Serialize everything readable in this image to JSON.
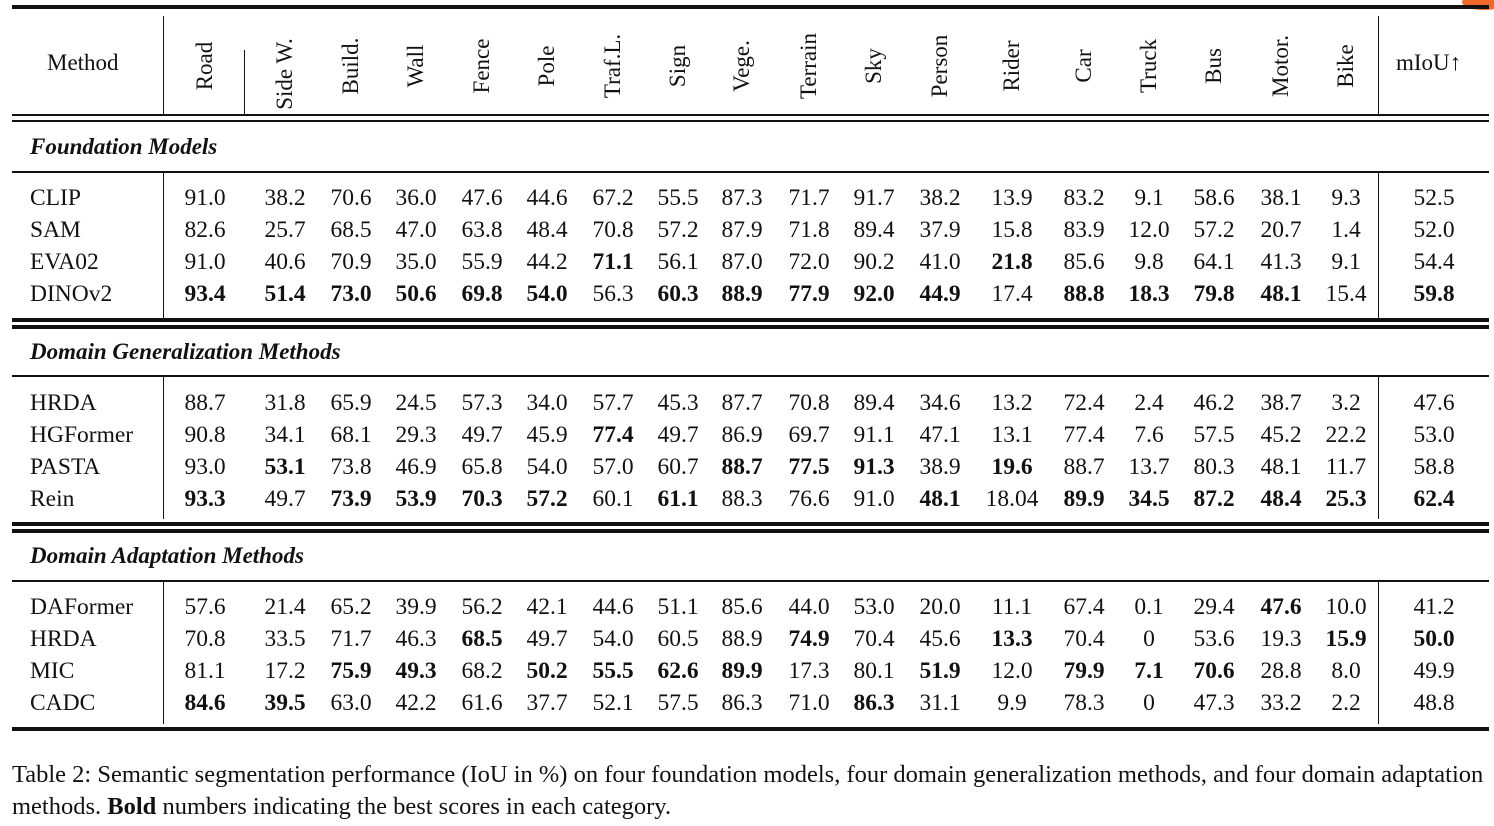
{
  "table": {
    "columns": [
      "Road",
      "Side W.",
      "Build.",
      "Wall",
      "Fence",
      "Pole",
      "Traf.L.",
      "Sign",
      "Vege.",
      "Terrain",
      "Sky",
      "Person",
      "Rider",
      "Car",
      "Truck",
      "Bus",
      "Motor.",
      "Bike"
    ],
    "method_header": "Method",
    "miou_header": "mIoU↑",
    "sections": [
      {
        "title": "Foundation Models",
        "rows": [
          {
            "method": "CLIP",
            "values": [
              "91.0",
              "38.2",
              "70.6",
              "36.0",
              "47.6",
              "44.6",
              "67.2",
              "55.5",
              "87.3",
              "71.7",
              "91.7",
              "38.2",
              "13.9",
              "83.2",
              "9.1",
              "58.6",
              "38.1",
              "9.3"
            ],
            "miou": "52.5",
            "bold": [],
            "miou_bold": false
          },
          {
            "method": "SAM",
            "values": [
              "82.6",
              "25.7",
              "68.5",
              "47.0",
              "63.8",
              "48.4",
              "70.8",
              "57.2",
              "87.9",
              "71.8",
              "89.4",
              "37.9",
              "15.8",
              "83.9",
              "12.0",
              "57.2",
              "20.7",
              "1.4"
            ],
            "miou": "52.0",
            "bold": [],
            "miou_bold": false
          },
          {
            "method": "EVA02",
            "values": [
              "91.0",
              "40.6",
              "70.9",
              "35.0",
              "55.9",
              "44.2",
              "71.1",
              "56.1",
              "87.0",
              "72.0",
              "90.2",
              "41.0",
              "21.8",
              "85.6",
              "9.8",
              "64.1",
              "41.3",
              "9.1"
            ],
            "miou": "54.4",
            "bold": [
              6,
              12
            ],
            "miou_bold": false
          },
          {
            "method": "DINOv2",
            "values": [
              "93.4",
              "51.4",
              "73.0",
              "50.6",
              "69.8",
              "54.0",
              "56.3",
              "60.3",
              "88.9",
              "77.9",
              "92.0",
              "44.9",
              "17.4",
              "88.8",
              "18.3",
              "79.8",
              "48.1",
              "15.4"
            ],
            "miou": "59.8",
            "bold": [
              0,
              1,
              2,
              3,
              4,
              5,
              7,
              8,
              9,
              10,
              11,
              13,
              14,
              15,
              16
            ],
            "miou_bold": true
          }
        ]
      },
      {
        "title": "Domain Generalization Methods",
        "rows": [
          {
            "method": "HRDA",
            "values": [
              "88.7",
              "31.8",
              "65.9",
              "24.5",
              "57.3",
              "34.0",
              "57.7",
              "45.3",
              "87.7",
              "70.8",
              "89.4",
              "34.6",
              "13.2",
              "72.4",
              "2.4",
              "46.2",
              "38.7",
              "3.2"
            ],
            "miou": "47.6",
            "bold": [],
            "miou_bold": false
          },
          {
            "method": "HGFormer",
            "values": [
              "90.8",
              "34.1",
              "68.1",
              "29.3",
              "49.7",
              "45.9",
              "77.4",
              "49.7",
              "86.9",
              "69.7",
              "91.1",
              "47.1",
              "13.1",
              "77.4",
              "7.6",
              "57.5",
              "45.2",
              "22.2"
            ],
            "miou": "53.0",
            "bold": [
              6
            ],
            "miou_bold": false
          },
          {
            "method": "PASTA",
            "values": [
              "93.0",
              "53.1",
              "73.8",
              "46.9",
              "65.8",
              "54.0",
              "57.0",
              "60.7",
              "88.7",
              "77.5",
              "91.3",
              "38.9",
              "19.6",
              "88.7",
              "13.7",
              "80.3",
              "48.1",
              "11.7"
            ],
            "miou": "58.8",
            "bold": [
              1,
              8,
              9,
              10,
              12
            ],
            "miou_bold": false
          },
          {
            "method": "Rein",
            "values": [
              "93.3",
              "49.7",
              "73.9",
              "53.9",
              "70.3",
              "57.2",
              "60.1",
              "61.1",
              "88.3",
              "76.6",
              "91.0",
              "48.1",
              "18.04",
              "89.9",
              "34.5",
              "87.2",
              "48.4",
              "25.3"
            ],
            "miou": "62.4",
            "bold": [
              0,
              2,
              3,
              4,
              5,
              7,
              11,
              13,
              14,
              15,
              16,
              17
            ],
            "miou_bold": true
          }
        ]
      },
      {
        "title": "Domain Adaptation Methods",
        "rows": [
          {
            "method": "DAFormer",
            "values": [
              "57.6",
              "21.4",
              "65.2",
              "39.9",
              "56.2",
              "42.1",
              "44.6",
              "51.1",
              "85.6",
              "44.0",
              "53.0",
              "20.0",
              "11.1",
              "67.4",
              "0.1",
              "29.4",
              "47.6",
              "10.0"
            ],
            "miou": "41.2",
            "bold": [
              16
            ],
            "miou_bold": false
          },
          {
            "method": "HRDA",
            "values": [
              "70.8",
              "33.5",
              "71.7",
              "46.3",
              "68.5",
              "49.7",
              "54.0",
              "60.5",
              "88.9",
              "74.9",
              "70.4",
              "45.6",
              "13.3",
              "70.4",
              "0",
              "53.6",
              "19.3",
              "15.9"
            ],
            "miou": "50.0",
            "bold": [
              4,
              9,
              12,
              17
            ],
            "miou_bold": true
          },
          {
            "method": "MIC",
            "values": [
              "81.1",
              "17.2",
              "75.9",
              "49.3",
              "68.2",
              "50.2",
              "55.5",
              "62.6",
              "89.9",
              "17.3",
              "80.1",
              "51.9",
              "12.0",
              "79.9",
              "7.1",
              "70.6",
              "28.8",
              "8.0"
            ],
            "miou": "49.9",
            "bold": [
              2,
              3,
              5,
              6,
              7,
              8,
              11,
              13,
              14,
              15
            ],
            "miou_bold": false
          },
          {
            "method": "CADC",
            "values": [
              "84.6",
              "39.5",
              "63.0",
              "42.2",
              "61.6",
              "37.7",
              "52.1",
              "57.5",
              "86.3",
              "71.0",
              "86.3",
              "31.1",
              "9.9",
              "78.3",
              "0",
              "47.3",
              "33.2",
              "2.2"
            ],
            "miou": "48.8",
            "bold": [
              0,
              1,
              10
            ],
            "miou_bold": false
          }
        ]
      }
    ]
  },
  "caption": {
    "prefix": "Table 2: Semantic segmentation performance (IoU in %) on four foundation models, four domain generalization methods, and four domain adaptation methods. ",
    "bold_word": "Bold",
    "suffix": " numbers indicating the best scores in each category."
  }
}
